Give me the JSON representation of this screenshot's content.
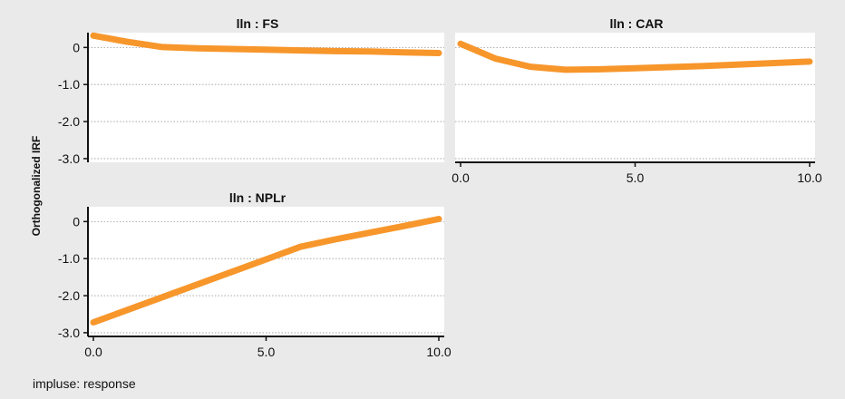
{
  "figure": {
    "ylabel": "Orthogonalized IRF",
    "note": "impluse: response",
    "line_color": "#f7962b"
  },
  "chart_data": [
    {
      "type": "line",
      "title": "lln : FS",
      "xlim": [
        0,
        10
      ],
      "ylim": [
        -3.1,
        0.4
      ],
      "yticks": [
        0,
        -1,
        -2,
        -3
      ],
      "ytick_labels": [
        "0",
        "-1.0",
        "-2.0",
        "-3.0"
      ],
      "xticks": [],
      "xtick_labels": [],
      "series": [
        {
          "x": [
            0,
            1,
            2,
            3,
            4,
            5,
            6,
            7,
            8,
            9,
            10
          ],
          "y": [
            0.32,
            0.15,
            0.01,
            -0.02,
            -0.04,
            -0.06,
            -0.08,
            -0.1,
            -0.11,
            -0.13,
            -0.15
          ]
        }
      ]
    },
    {
      "type": "line",
      "title": "lln : CAR",
      "xlim": [
        0,
        10
      ],
      "ylim": [
        -3.1,
        0.4
      ],
      "yticks": [],
      "ytick_labels": [],
      "xticks": [
        0,
        5,
        10
      ],
      "xtick_labels": [
        "0.0",
        "5.0",
        "10.0"
      ],
      "series": [
        {
          "x": [
            0,
            1,
            2,
            3,
            4,
            5,
            6,
            7,
            8,
            9,
            10
          ],
          "y": [
            0.1,
            -0.3,
            -0.52,
            -0.6,
            -0.59,
            -0.56,
            -0.53,
            -0.5,
            -0.46,
            -0.42,
            -0.38
          ]
        }
      ]
    },
    {
      "type": "line",
      "title": "lln : NPLr",
      "xlim": [
        0,
        10
      ],
      "ylim": [
        -3.1,
        0.4
      ],
      "yticks": [
        0,
        -1,
        -2,
        -3
      ],
      "ytick_labels": [
        "0",
        "-1.0",
        "-2.0",
        "-3.0"
      ],
      "xticks": [
        0,
        5,
        10
      ],
      "xtick_labels": [
        "0.0",
        "5.0",
        "10.0"
      ],
      "series": [
        {
          "x": [
            0,
            1,
            2,
            3,
            4,
            5,
            6,
            7,
            8,
            9,
            10
          ],
          "y": [
            -2.72,
            -2.38,
            -2.04,
            -1.7,
            -1.36,
            -1.02,
            -0.68,
            -0.48,
            -0.3,
            -0.12,
            0.07
          ]
        }
      ]
    }
  ]
}
